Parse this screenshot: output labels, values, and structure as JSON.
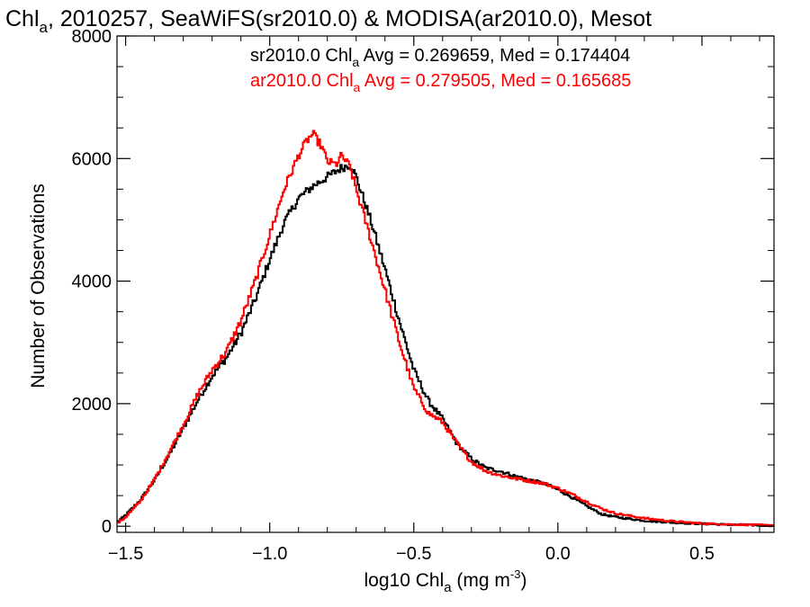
{
  "chart_data": {
    "type": "line",
    "title": {
      "main": "Chl",
      "sub": "a",
      "rest": ", 2010257, SeaWiFS(sr2010.0) & MODISA(ar2010.0), Mesot"
    },
    "xlabel": {
      "main": "log10 Chl",
      "sub": "a",
      "rest": " (mg m",
      "sup": "-3",
      "end": ")"
    },
    "ylabel": "Number of Observations",
    "xlim": [
      -1.53,
      0.75
    ],
    "ylim": [
      -100,
      8000
    ],
    "x_ticks": [
      -1.5,
      -1.0,
      -0.5,
      0.0,
      0.5
    ],
    "x_tick_labels": [
      "−1.5",
      "−1.0",
      "−0.5",
      "0.0",
      "0.5"
    ],
    "y_ticks": [
      0,
      2000,
      4000,
      6000,
      8000
    ],
    "y_tick_labels": [
      "0",
      "2000",
      "4000",
      "6000",
      "8000"
    ],
    "series": [
      {
        "key": "sr",
        "color": "#000000",
        "stat": {
          "pre": "sr2010.0 Chl",
          "sub": "a",
          "post": " Avg = 0.269659, Med = 0.174404"
        },
        "x": [
          -1.53,
          -1.5,
          -1.45,
          -1.4,
          -1.35,
          -1.3,
          -1.25,
          -1.2,
          -1.15,
          -1.1,
          -1.05,
          -1.0,
          -0.95,
          -0.9,
          -0.85,
          -0.8,
          -0.75,
          -0.72,
          -0.7,
          -0.65,
          -0.6,
          -0.55,
          -0.5,
          -0.45,
          -0.4,
          -0.35,
          -0.3,
          -0.25,
          -0.2,
          -0.15,
          -0.1,
          -0.05,
          0.0,
          0.05,
          0.1,
          0.15,
          0.2,
          0.3,
          0.4,
          0.5,
          0.6,
          0.7,
          0.75
        ],
        "y": [
          60,
          180,
          420,
          750,
          1150,
          1600,
          2050,
          2450,
          2750,
          3150,
          3700,
          4350,
          4950,
          5350,
          5550,
          5700,
          5850,
          5900,
          5700,
          5000,
          4200,
          3350,
          2550,
          2050,
          1750,
          1350,
          1100,
          950,
          900,
          820,
          760,
          700,
          600,
          470,
          330,
          200,
          150,
          90,
          60,
          40,
          25,
          15,
          10
        ]
      },
      {
        "key": "ar",
        "color": "#ff0000",
        "stat": {
          "pre": "ar2010.0 Chl",
          "sub": "a",
          "post": " Avg = 0.279505, Med = 0.165685"
        },
        "x": [
          -1.53,
          -1.5,
          -1.45,
          -1.4,
          -1.35,
          -1.3,
          -1.25,
          -1.2,
          -1.15,
          -1.1,
          -1.05,
          -1.0,
          -0.95,
          -0.9,
          -0.87,
          -0.85,
          -0.82,
          -0.8,
          -0.77,
          -0.75,
          -0.72,
          -0.7,
          -0.65,
          -0.6,
          -0.55,
          -0.5,
          -0.45,
          -0.4,
          -0.35,
          -0.3,
          -0.25,
          -0.2,
          -0.15,
          -0.1,
          -0.05,
          0.0,
          0.05,
          0.1,
          0.15,
          0.2,
          0.3,
          0.4,
          0.5,
          0.6,
          0.7,
          0.75
        ],
        "y": [
          40,
          150,
          400,
          760,
          1200,
          1650,
          2150,
          2550,
          2850,
          3350,
          4000,
          4750,
          5500,
          6050,
          6300,
          6400,
          6200,
          5950,
          5900,
          6050,
          5850,
          5500,
          4700,
          3850,
          3000,
          2250,
          1850,
          1700,
          1350,
          1050,
          900,
          830,
          780,
          740,
          700,
          620,
          520,
          400,
          290,
          210,
          130,
          80,
          45,
          30,
          20,
          15
        ]
      }
    ]
  }
}
